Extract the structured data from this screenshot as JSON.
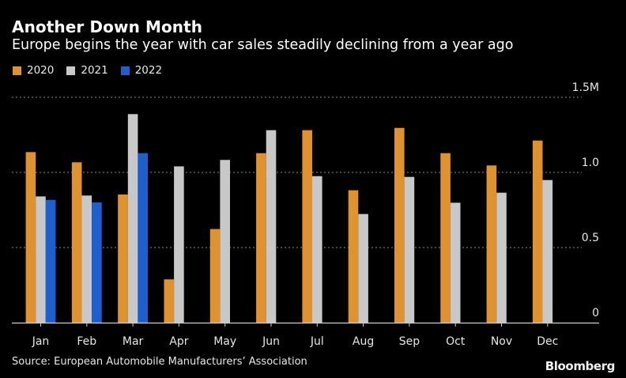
{
  "header": {
    "title": "Another Down Month",
    "subtitle": "Europe begins the year with car sales steadily declining from a year ago"
  },
  "legend": [
    {
      "label": "2020",
      "color": "#E0922F"
    },
    {
      "label": "2021",
      "color": "#C8C8C8"
    },
    {
      "label": "2022",
      "color": "#1E5FD0"
    }
  ],
  "footer": {
    "source": "Source: European Automobile Manufacturers’ Association",
    "brand": "Bloomberg"
  },
  "chart_data": {
    "type": "bar",
    "title": "Another Down Month",
    "subtitle": "Europe begins the year with car sales steadily declining from a year ago",
    "xlabel": "",
    "ylabel": "",
    "categories": [
      "Jan",
      "Feb",
      "Mar",
      "Apr",
      "May",
      "Jun",
      "Jul",
      "Aug",
      "Sep",
      "Oct",
      "Nov",
      "Dec"
    ],
    "series": [
      {
        "name": "2020",
        "color": "#E0922F",
        "values": [
          1.135,
          1.067,
          0.853,
          0.288,
          0.623,
          1.128,
          1.281,
          0.881,
          1.296,
          1.128,
          1.046,
          1.212
        ]
      },
      {
        "name": "2021",
        "color": "#C8C8C8",
        "values": [
          0.84,
          0.846,
          1.388,
          1.04,
          1.083,
          1.281,
          0.975,
          0.723,
          0.97,
          0.798,
          0.865,
          0.949
        ]
      },
      {
        "name": "2022",
        "color": "#1E5FD0",
        "values": [
          0.817,
          0.8,
          1.128,
          null,
          null,
          null,
          null,
          null,
          null,
          null,
          null,
          null
        ]
      }
    ],
    "ylim": [
      0,
      1.5
    ],
    "yticks": [
      0,
      0.5,
      1.0,
      1.5
    ],
    "ytick_labels": [
      "0",
      "0.5",
      "1.0",
      "1.5M"
    ],
    "units": "millions of cars",
    "grid": true,
    "grid_style": "dotted",
    "y_axis_side": "right",
    "legend_position": "top-left",
    "source": "Source: European Automobile Manufacturers’ Association"
  }
}
